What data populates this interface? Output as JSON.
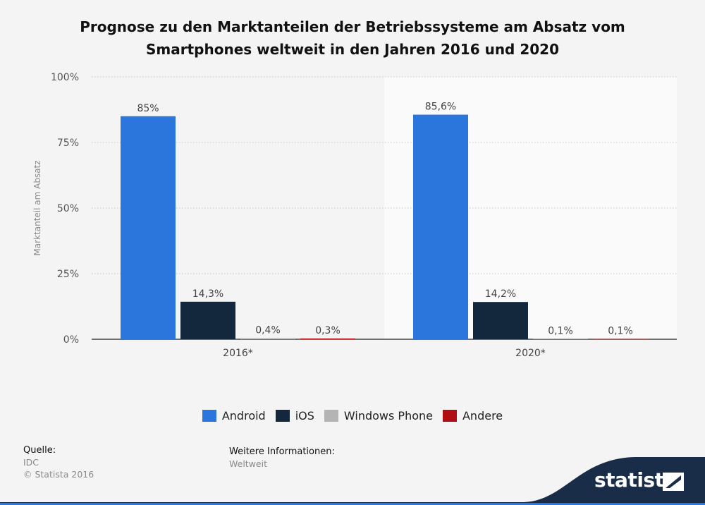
{
  "title_line1": "Prognose zu den Marktanteilen der Betriebssysteme am Absatz vom",
  "title_line2": "Smartphones weltweit in den Jahren 2016 und 2020",
  "chart_data": {
    "type": "bar",
    "categories": [
      "2016*",
      "2020*"
    ],
    "series": [
      {
        "name": "Android",
        "color": "#2a76dd",
        "values": [
          85,
          85.6
        ],
        "labels": [
          "85%",
          "85,6%"
        ]
      },
      {
        "name": "iOS",
        "color": "#13273d",
        "values": [
          14.3,
          14.2
        ],
        "labels": [
          "14,3%",
          "14,2%"
        ]
      },
      {
        "name": "Windows Phone",
        "color": "#b4b4b4",
        "values": [
          0.4,
          0.1
        ],
        "labels": [
          "0,4%",
          "0,1%"
        ]
      },
      {
        "name": "Andere",
        "color": "#b00f12",
        "values": [
          0.3,
          0.1
        ],
        "labels": [
          "0,3%",
          "0,1%"
        ]
      }
    ],
    "ylabel": "Marktanteil am Absatz",
    "ylim": [
      0,
      100
    ],
    "yticks": [
      "0%",
      "25%",
      "50%",
      "75%",
      "100%"
    ],
    "grid": true,
    "legend_position": "bottom"
  },
  "legend": [
    "Android",
    "iOS",
    "Windows Phone",
    "Andere"
  ],
  "footer": {
    "source_label": "Quelle:",
    "source_value": "IDC",
    "copyright": "© Statista 2016",
    "info_label": "Weitere Informationen:",
    "info_value": "Weltweit"
  },
  "brand": "statista"
}
